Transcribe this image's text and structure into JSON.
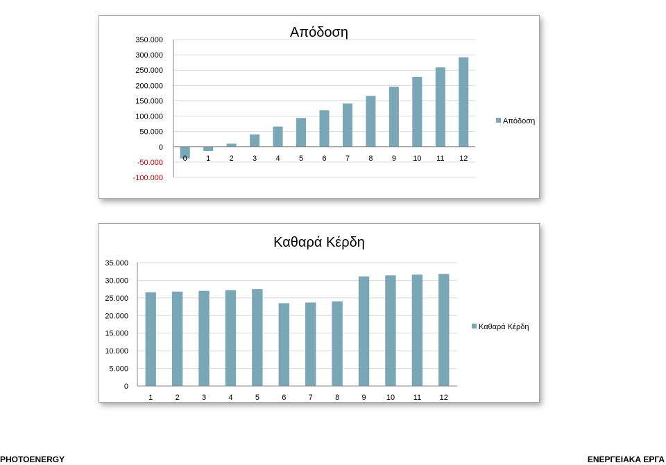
{
  "colors": {
    "bar": "#7aa7b5",
    "negative_tick": "#c00000",
    "axis": "#868686",
    "grid": "#d9d9d9"
  },
  "footer": {
    "left": "PHOTOENERGY",
    "right": "ΕΝΕΡΓΕΙΑΚΑ ΕΡΓΑ"
  },
  "chart_data": [
    {
      "type": "bar",
      "title": "Απόδοση",
      "categories": [
        "0",
        "1",
        "2",
        "3",
        "4",
        "5",
        "6",
        "7",
        "8",
        "9",
        "10",
        "11",
        "12"
      ],
      "series": [
        {
          "name": "Απόδοση",
          "values": [
            -38000,
            -14000,
            10000,
            40000,
            66000,
            94000,
            119000,
            141000,
            166000,
            196000,
            228000,
            259000,
            292000
          ]
        }
      ],
      "ylim": [
        -100000,
        350000
      ],
      "y_ticks": [
        350000,
        300000,
        250000,
        200000,
        150000,
        100000,
        50000,
        0,
        -50000,
        -100000
      ],
      "y_tick_labels": [
        "350.000",
        "300.000",
        "250.000",
        "200.000",
        "150.000",
        "100.000",
        "50.000",
        "0",
        "-50.000",
        "-100.000"
      ],
      "grid": true,
      "legend": "right",
      "xlabel": "",
      "ylabel": ""
    },
    {
      "type": "bar",
      "title": "Καθαρά Κέρδη",
      "categories": [
        "1",
        "2",
        "3",
        "4",
        "5",
        "6",
        "7",
        "8",
        "9",
        "10",
        "11",
        "12"
      ],
      "series": [
        {
          "name": "Καθαρά Κέρδη",
          "values": [
            26600,
            26800,
            27000,
            27200,
            27500,
            23500,
            23700,
            24000,
            31100,
            31400,
            31600,
            31800
          ]
        }
      ],
      "ylim": [
        0,
        35000
      ],
      "y_ticks": [
        35000,
        30000,
        25000,
        20000,
        15000,
        10000,
        5000,
        0
      ],
      "y_tick_labels": [
        "35.000",
        "30.000",
        "25.000",
        "20.000",
        "15.000",
        "10.000",
        "5.000",
        "0"
      ],
      "grid": true,
      "legend": "right",
      "xlabel": "",
      "ylabel": ""
    }
  ]
}
